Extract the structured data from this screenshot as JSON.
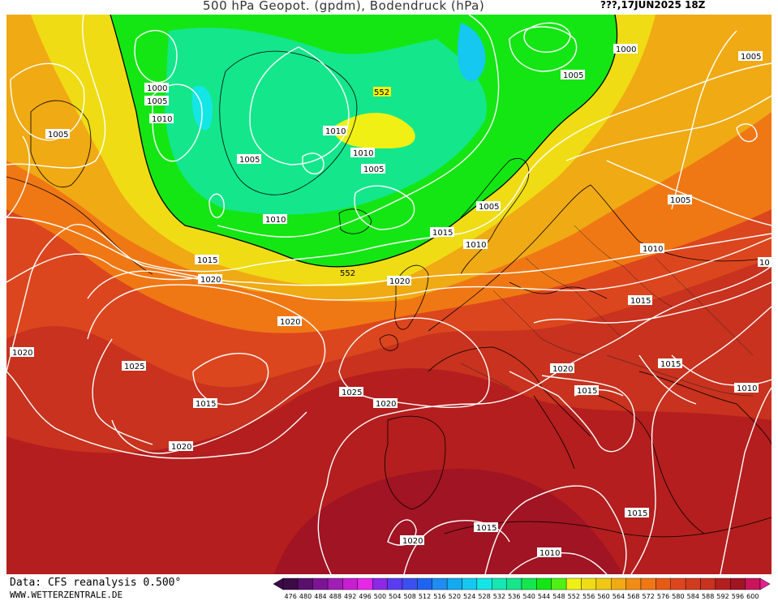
{
  "header": {
    "title": "500 hPa Geopot. (gpdm), Bodendruck (hPa)",
    "run": "???,17JUN2025 18Z"
  },
  "footer": {
    "source": "Data: CFS reanalysis 0.500°",
    "url": "WWW.WETTERZENTRALE.DE"
  },
  "colorbar": {
    "ticks": [
      "476",
      "480",
      "484",
      "488",
      "492",
      "496",
      "500",
      "504",
      "508",
      "512",
      "516",
      "520",
      "524",
      "528",
      "532",
      "536",
      "540",
      "544",
      "548",
      "552",
      "556",
      "560",
      "564",
      "568",
      "572",
      "576",
      "580",
      "584",
      "588",
      "592",
      "596",
      "600"
    ],
    "colors": [
      "#3c0a46",
      "#5a0f6e",
      "#7d1496",
      "#a01eb4",
      "#c81ed2",
      "#e628e6",
      "#8c28e6",
      "#5a3cf0",
      "#3c50f0",
      "#1e64f0",
      "#1e8cf0",
      "#14aaf0",
      "#14c8f0",
      "#14e6e6",
      "#14e6b4",
      "#14e68c",
      "#14e650",
      "#14e614",
      "#50f014",
      "#f0f014",
      "#f0dc14",
      "#f0c814",
      "#f0aa14",
      "#f08c14",
      "#f07814",
      "#e65a14",
      "#dc461e",
      "#d23c1e",
      "#c8321e",
      "#b41e1e",
      "#a01423",
      "#c8145a"
    ]
  },
  "isobars": [
    {
      "value": "1000",
      "label": "1000"
    },
    {
      "value": "1005",
      "label": "1005"
    },
    {
      "value": "1010",
      "label": "1010"
    },
    {
      "value": "1015",
      "label": "1015"
    },
    {
      "value": "1020",
      "label": "1020"
    },
    {
      "value": "1025",
      "label": "1025"
    }
  ],
  "labels": {
    "l1000a": "1000",
    "l1005a": "1005",
    "l1010a": "1010",
    "l1005b": "1005",
    "l1005c": "1005",
    "l1010b": "1010",
    "l1010c": "1010",
    "l1005d": "1005",
    "l1010d": "1010",
    "l1015a": "1015",
    "l1020a": "1020",
    "l1015b": "1015",
    "l1005e": "1005",
    "l1010e": "1010",
    "l1020b": "1020",
    "l1000b": "1000",
    "l1005f": "1005",
    "l1005g": "1005",
    "l1005h": "1005",
    "l1010f": "1010",
    "l1015c": "1015",
    "l1020c": "1020",
    "l1020d": "1020",
    "l1025a": "1025",
    "l1015d": "1015",
    "l1020e": "1020",
    "l1025b": "1025",
    "l1020f": "1020",
    "l1020g": "1020",
    "l1015e": "1015",
    "l1015f": "1015",
    "l1010g": "1010",
    "l1015g": "1015",
    "l1020h": "1020",
    "l1015h": "1015",
    "l1010h": "1010",
    "l1010i": "1010",
    "l1005i": "1005",
    "l552a": "552",
    "l552b": "552",
    "l1015i": "1015",
    "l10edge": "10"
  }
}
